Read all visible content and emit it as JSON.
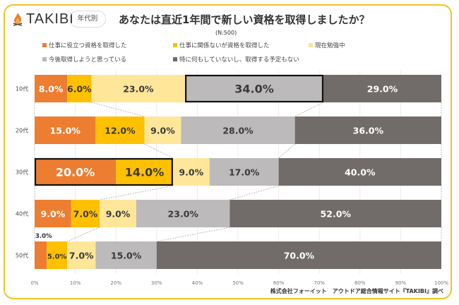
{
  "header": {
    "brand": "TAKIBI",
    "badge": "年代別",
    "title": "あなたは直近1年間で新しい資格を取得しましたか？",
    "sample": "(N:500)"
  },
  "source": "株式会社フォーイット　アウトドア総合情報サイト『TAKIBI』調べ",
  "colors": {
    "frame": "#f2c320",
    "flame": "#ef7d2e"
  },
  "chart_data": {
    "type": "bar",
    "orientation": "horizontal-stacked-100",
    "title": "あなたは直近1年間で新しい資格を取得しましたか？",
    "categories": [
      "10代",
      "20代",
      "30代",
      "40代",
      "50代"
    ],
    "series": [
      {
        "name": "仕事に役立つ資格を取得した",
        "color": "#ed7d31",
        "values": [
          8.0,
          15.0,
          20.0,
          9.0,
          3.0
        ],
        "labels": [
          "8.0%",
          "15.0%",
          "20.0%",
          "9.0%",
          "3.0%"
        ]
      },
      {
        "name": "仕事に関係ないが資格を取得した",
        "color": "#ffc000",
        "values": [
          6.0,
          12.0,
          14.0,
          7.0,
          5.0
        ],
        "labels": [
          "6.0%",
          "12.0%",
          "14.0%",
          "7.0%",
          "5.0%"
        ]
      },
      {
        "name": "現在勉強中",
        "color": "#ffe699",
        "values": [
          23.0,
          9.0,
          9.0,
          9.0,
          7.0
        ],
        "labels": [
          "23.0%",
          "9.0%",
          "9.0%",
          "9.0%",
          "7.0%"
        ]
      },
      {
        "name": "今後取得しようと思っている",
        "color": "#bcbaba",
        "values": [
          34.0,
          28.0,
          17.0,
          23.0,
          15.0
        ],
        "labels": [
          "34.0%",
          "28.0%",
          "17.0%",
          "23.0%",
          "15.0%"
        ]
      },
      {
        "name": "特に何もしていないし、取得する予定もない",
        "color": "#716b69",
        "values": [
          29.0,
          36.0,
          40.0,
          52.0,
          70.0
        ],
        "labels": [
          "29.0%",
          "36.0%",
          "40.0%",
          "52.0%",
          "70.0%"
        ]
      }
    ],
    "highlights": [
      {
        "category": "10代",
        "series": [
          3
        ]
      },
      {
        "category": "30代",
        "series": [
          0,
          1
        ]
      }
    ],
    "xlim": [
      0,
      100
    ],
    "xticks": [
      "0%",
      "10%",
      "20%",
      "30%",
      "40%",
      "50%",
      "60%",
      "70%",
      "80%",
      "90%",
      "100%"
    ],
    "grid": true,
    "legend": "top"
  }
}
